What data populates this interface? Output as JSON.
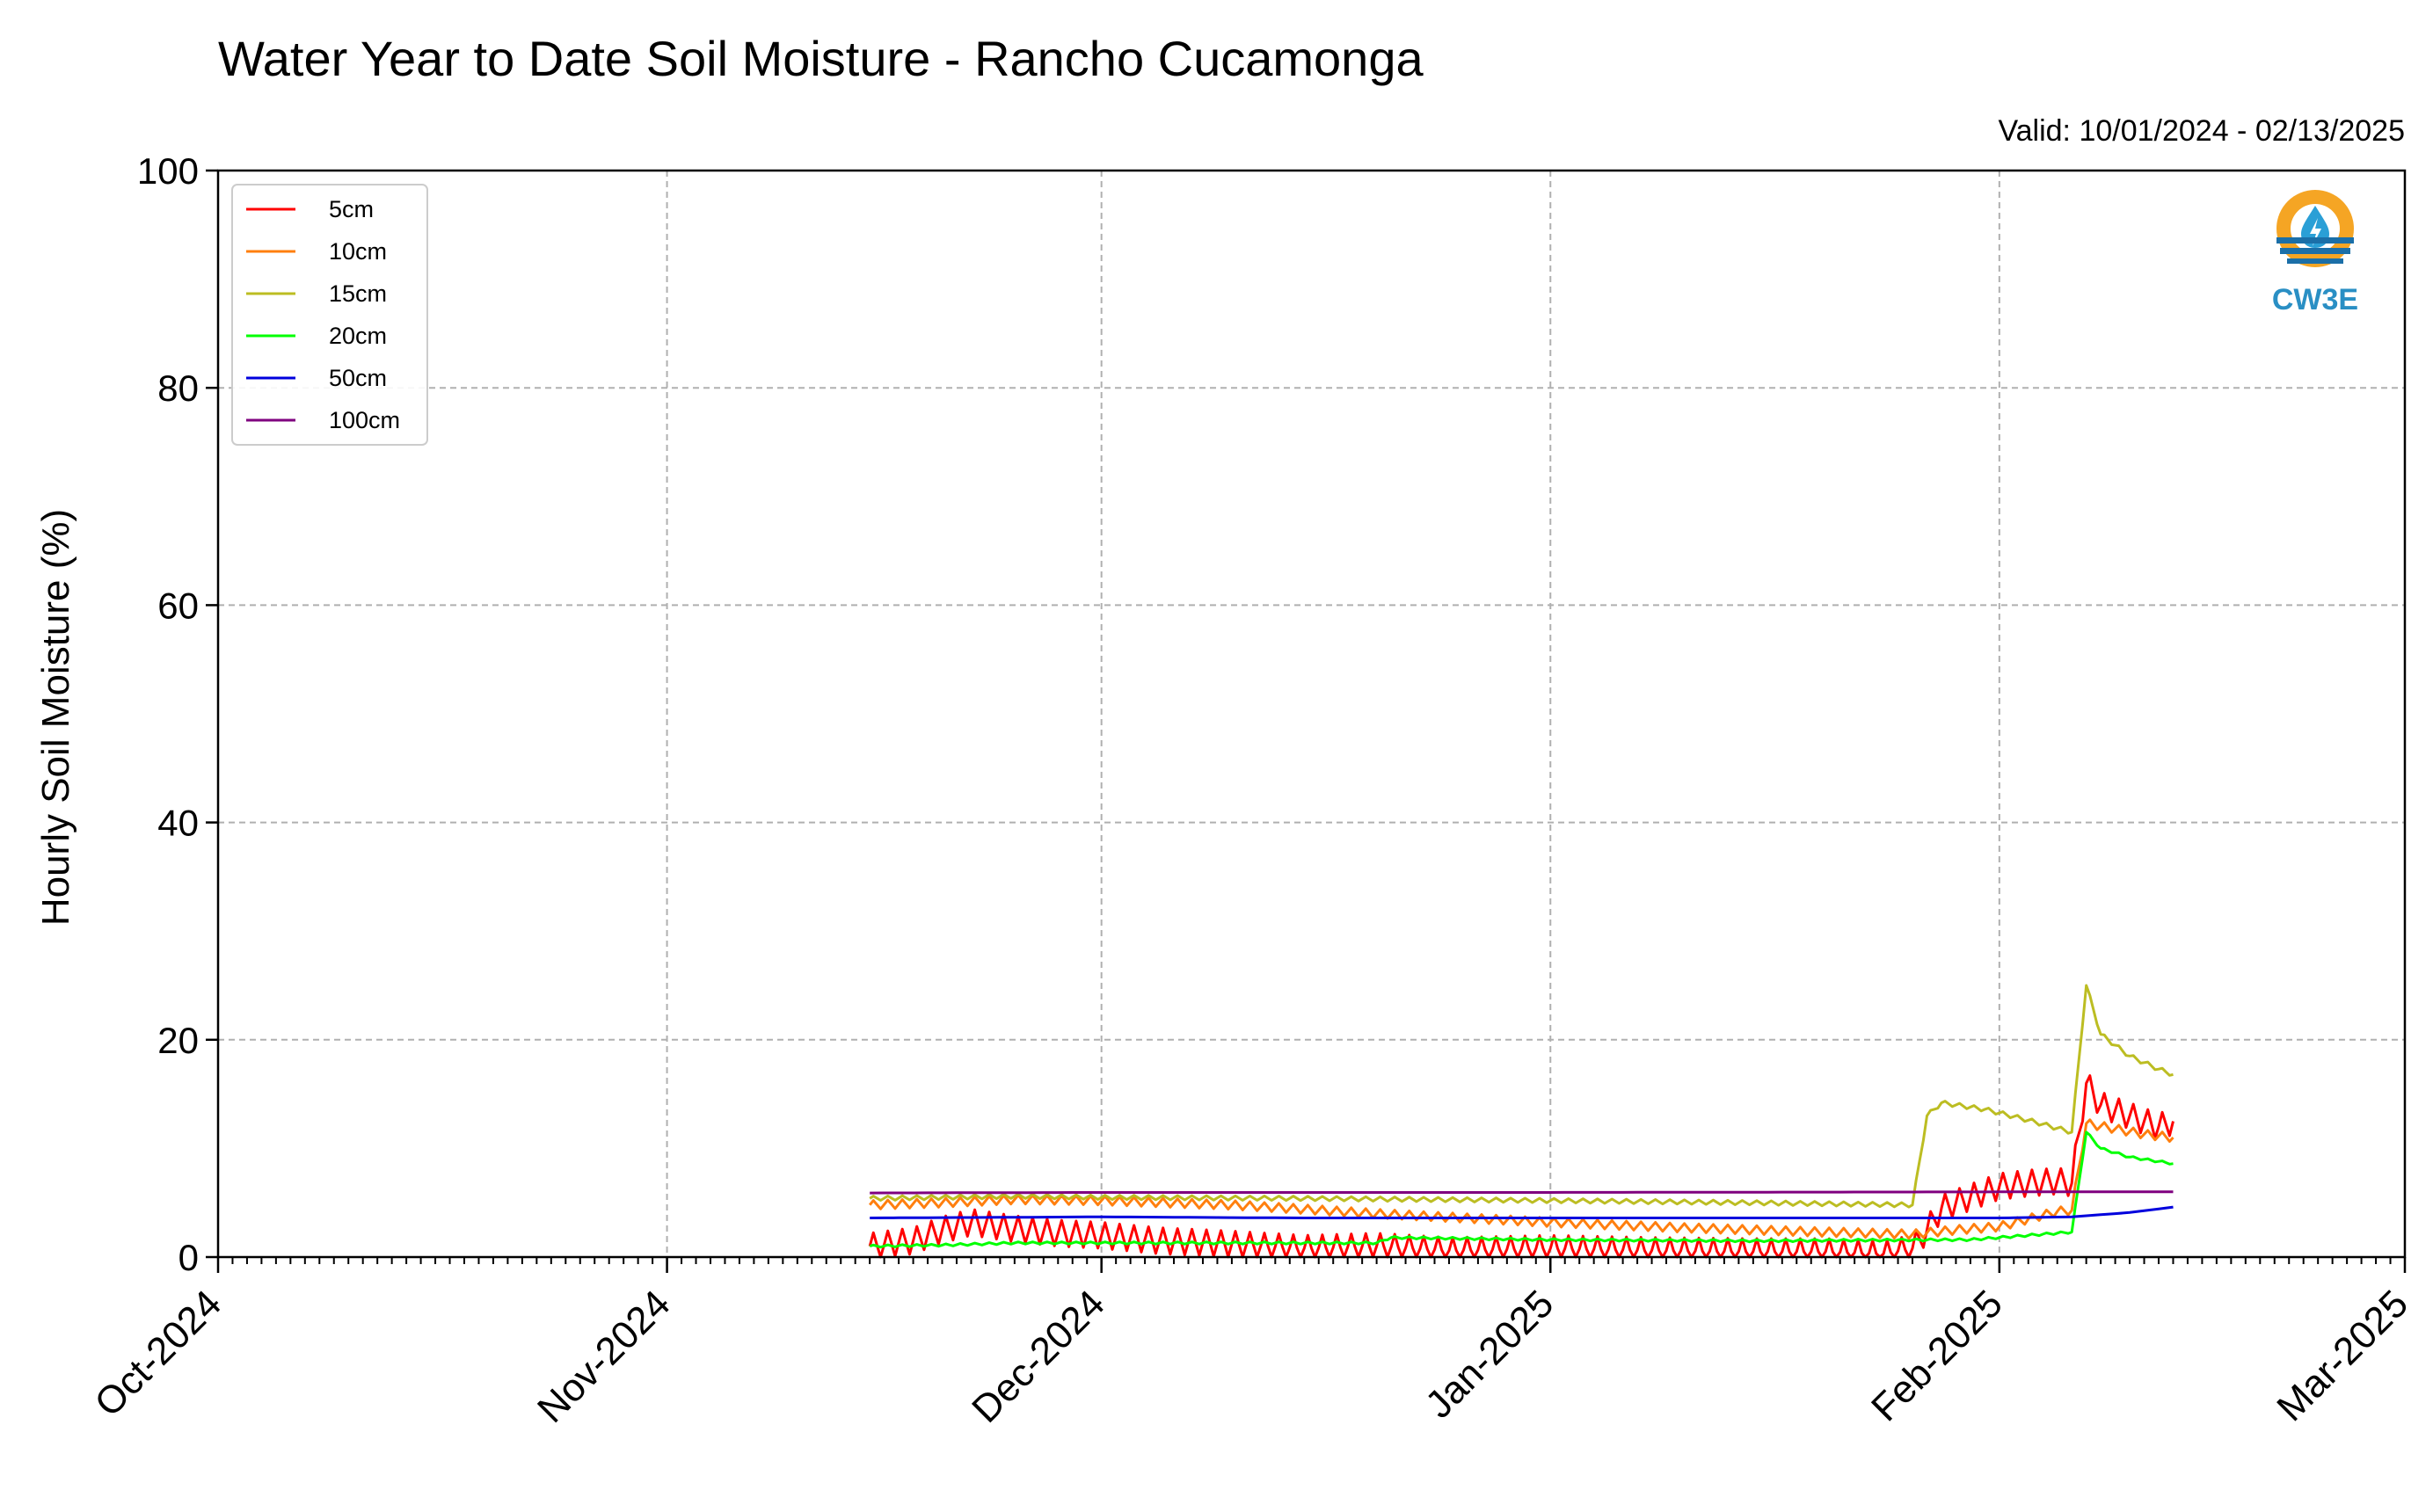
{
  "chart_data": {
    "type": "line",
    "title": "Water Year to Date Soil Moisture - Rancho Cucamonga",
    "subtitle": "Valid: 10/01/2024 - 02/13/2025",
    "ylabel": "Hourly Soil Moisture (%)",
    "xlabel": "",
    "xlim": [
      "2024-10-01",
      "2025-03-01"
    ],
    "ylim": [
      0,
      100
    ],
    "yticks": [
      0,
      20,
      40,
      60,
      80,
      100
    ],
    "yticks_labels": [
      "0",
      "20",
      "40",
      "60",
      "80",
      "100"
    ],
    "xticks": [
      "2024-10-01",
      "2024-11-01",
      "2024-12-01",
      "2025-01-01",
      "2025-02-01",
      "2025-03-01"
    ],
    "xticks_labels": [
      "Oct-2024",
      "Nov-2024",
      "Dec-2024",
      "Jan-2025",
      "Feb-2025",
      "Mar-2025"
    ],
    "grid": true,
    "legend_position": "top-left",
    "logo_text": "CW3E",
    "series": [
      {
        "name": "5cm",
        "color": "#ff0000",
        "x": [
          "2024-11-15",
          "2024-11-18",
          "2024-11-20",
          "2024-11-22",
          "2024-11-25",
          "2024-11-28",
          "2024-12-01",
          "2024-12-05",
          "2024-12-10",
          "2024-12-15",
          "2024-12-20",
          "2024-12-25",
          "2025-01-01",
          "2025-01-08",
          "2025-01-15",
          "2025-01-20",
          "2025-01-24",
          "2025-01-26",
          "2025-01-27",
          "2025-01-28",
          "2025-01-30",
          "2025-02-01",
          "2025-02-03",
          "2025-02-05",
          "2025-02-06",
          "2025-02-07",
          "2025-02-08",
          "2025-02-10",
          "2025-02-12",
          "2025-02-13"
        ],
        "y": [
          1.0,
          1.5,
          2.5,
          3.2,
          2.6,
          2.2,
          2.0,
          1.5,
          1.2,
          0.8,
          1.0,
          0.6,
          0.8,
          0.6,
          0.5,
          0.5,
          0.3,
          0.8,
          2.5,
          4.5,
          5.5,
          6.5,
          6.8,
          7.0,
          6.8,
          16.0,
          14.0,
          13.0,
          12.0,
          12.5
        ],
        "diurnal_amplitude": 1.2
      },
      {
        "name": "10cm",
        "color": "#ff7f0e",
        "x": [
          "2024-11-15",
          "2024-11-20",
          "2024-11-25",
          "2024-12-01",
          "2024-12-10",
          "2024-12-20",
          "2025-01-01",
          "2025-01-10",
          "2025-01-20",
          "2025-01-26",
          "2025-01-29",
          "2025-02-01",
          "2025-02-03",
          "2025-02-05",
          "2025-02-06",
          "2025-02-07",
          "2025-02-09",
          "2025-02-11",
          "2025-02-13"
        ],
        "y": [
          4.8,
          5.0,
          5.3,
          5.2,
          4.8,
          4.0,
          3.2,
          2.7,
          2.3,
          2.1,
          2.5,
          2.8,
          3.5,
          4.2,
          4.3,
          12.3,
          11.8,
          11.3,
          11.0
        ],
        "diurnal_amplitude": 0.4
      },
      {
        "name": "15cm",
        "color": "#bcbd22",
        "x": [
          "2024-11-15",
          "2024-11-25",
          "2024-12-01",
          "2024-12-15",
          "2025-01-01",
          "2025-01-15",
          "2025-01-26",
          "2025-01-27",
          "2025-01-28",
          "2025-01-31",
          "2025-02-03",
          "2025-02-06",
          "2025-02-07",
          "2025-02-08",
          "2025-02-10",
          "2025-02-12",
          "2025-02-13"
        ],
        "y": [
          5.4,
          5.6,
          5.5,
          5.4,
          5.2,
          5.0,
          4.8,
          13.0,
          14.2,
          13.6,
          12.6,
          11.5,
          25.0,
          20.5,
          18.5,
          17.3,
          16.8
        ],
        "diurnal_amplitude": 0.2
      },
      {
        "name": "20cm",
        "color": "#00ff00",
        "x": [
          "2024-11-15",
          "2024-11-20",
          "2024-11-25",
          "2024-12-01",
          "2024-12-10",
          "2024-12-20",
          "2024-12-21",
          "2025-01-01",
          "2025-01-15",
          "2025-01-30",
          "2025-02-01",
          "2025-02-03",
          "2025-02-06",
          "2025-02-07",
          "2025-02-08",
          "2025-02-10",
          "2025-02-13"
        ],
        "y": [
          1.0,
          1.1,
          1.3,
          1.3,
          1.3,
          1.3,
          1.8,
          1.6,
          1.5,
          1.6,
          1.8,
          2.0,
          2.3,
          11.5,
          10.0,
          9.2,
          8.6
        ],
        "diurnal_amplitude": 0.1
      },
      {
        "name": "50cm",
        "color": "#0000dd",
        "x": [
          "2024-11-15",
          "2024-12-01",
          "2024-12-15",
          "2025-01-01",
          "2025-01-15",
          "2025-02-01",
          "2025-02-06",
          "2025-02-10",
          "2025-02-13"
        ],
        "y": [
          3.6,
          3.7,
          3.6,
          3.6,
          3.6,
          3.6,
          3.7,
          4.1,
          4.6
        ],
        "diurnal_amplitude": 0
      },
      {
        "name": "100cm",
        "color": "#7f007f",
        "x": [
          "2024-11-15",
          "2024-12-01",
          "2025-01-01",
          "2025-02-01",
          "2025-02-13"
        ],
        "y": [
          5.9,
          5.95,
          5.95,
          6.0,
          6.0
        ],
        "diurnal_amplitude": 0
      }
    ]
  }
}
